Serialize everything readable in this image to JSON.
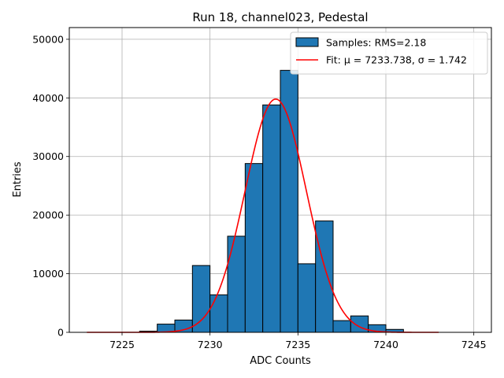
{
  "chart_data": {
    "type": "bar",
    "title": "Run 18, channel023, Pedestal",
    "xlabel": "ADC Counts",
    "ylabel": "Entries",
    "xlim": [
      7222,
      7246
    ],
    "ylim": [
      0,
      52000
    ],
    "grid": true,
    "legend_position": "top-right",
    "x_ticks": [
      7225,
      7230,
      7235,
      7240,
      7245
    ],
    "y_ticks": [
      0,
      10000,
      20000,
      30000,
      40000,
      50000
    ],
    "bin_width": 1,
    "histogram": {
      "name": "Samples: RMS=2.18",
      "bin_edges": [
        7226,
        7227,
        7228,
        7229,
        7230,
        7231,
        7232,
        7233,
        7234,
        7235,
        7236,
        7237,
        7238,
        7239,
        7240,
        7241
      ],
      "counts": [
        200,
        1400,
        2100,
        11400,
        6400,
        16400,
        28800,
        38800,
        44700,
        11700,
        19000,
        2000,
        2800,
        1300,
        500
      ]
    },
    "fit": {
      "name": "Fit: μ = 7233.738, σ = 1.742",
      "mu": 7233.738,
      "sigma": 1.742,
      "amplitude": 39800,
      "x_range": [
        7223,
        7243
      ]
    },
    "colors": {
      "bars": "#1f77b4",
      "bar_edge": "#000000",
      "fit": "#ff0000",
      "grid": "#b0b0b0"
    }
  }
}
